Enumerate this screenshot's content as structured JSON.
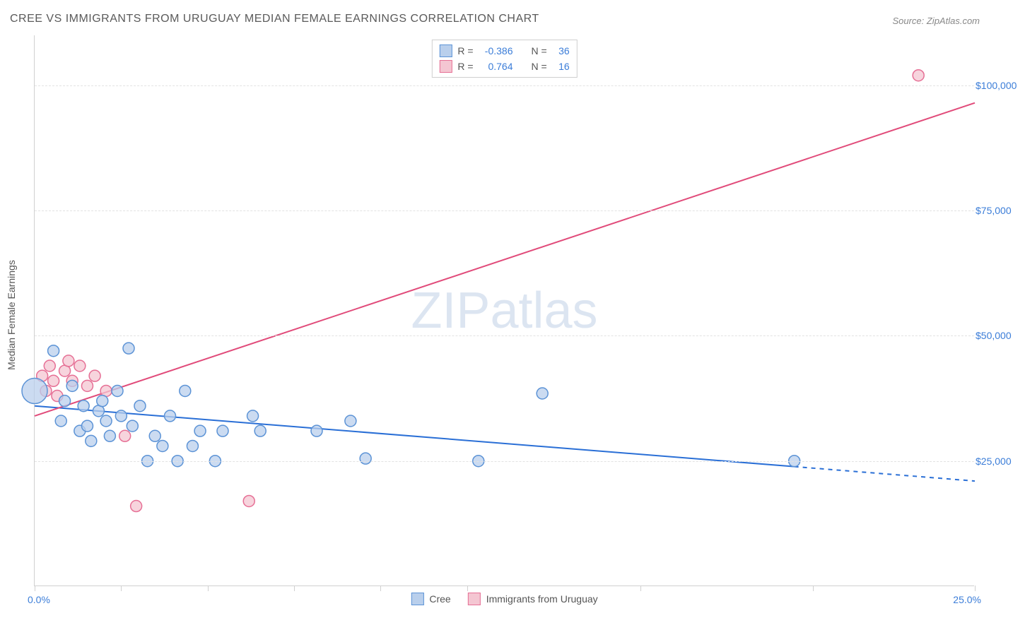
{
  "title": "CREE VS IMMIGRANTS FROM URUGUAY MEDIAN FEMALE EARNINGS CORRELATION CHART",
  "source": "Source: ZipAtlas.com",
  "watermark": "ZIPatlas",
  "chart": {
    "type": "scatter",
    "background_color": "#ffffff",
    "grid_color": "#e2e2e2",
    "border_color": "#d0d0d0",
    "y_axis_title": "Median Female Earnings",
    "xlim": [
      0,
      25
    ],
    "ylim": [
      0,
      110000
    ],
    "x_tick_positions": [
      0,
      2.3,
      4.6,
      6.9,
      9.2,
      11.5,
      16.1,
      20.7,
      25
    ],
    "x_tick_labels": {
      "left": "0.0%",
      "right": "25.0%"
    },
    "y_ticks": [
      {
        "value": 25000,
        "label": "$25,000"
      },
      {
        "value": 50000,
        "label": "$50,000"
      },
      {
        "value": 75000,
        "label": "$75,000"
      },
      {
        "value": 100000,
        "label": "$100,000"
      }
    ],
    "label_color": "#3b7dd8",
    "axis_title_color": "#555555",
    "label_fontsize": 14,
    "title_fontsize": 16,
    "title_color": "#5a5a5a",
    "marker_radius": 8,
    "marker_radius_large": 18,
    "marker_stroke_width": 1.5,
    "line_width": 2,
    "series": [
      {
        "name": "Cree",
        "fill_color": "#b9cfec",
        "stroke_color": "#5c93d6",
        "line_color": "#2a6fd6",
        "R": "-0.386",
        "N": "36",
        "regression": {
          "x1": 0,
          "y1": 36000,
          "x2": 25,
          "y2": 21000,
          "solid_until_x": 20.2
        },
        "points": [
          {
            "x": 0.0,
            "y": 39000,
            "r": 18
          },
          {
            "x": 0.5,
            "y": 47000
          },
          {
            "x": 0.7,
            "y": 33000
          },
          {
            "x": 0.8,
            "y": 37000
          },
          {
            "x": 1.0,
            "y": 40000
          },
          {
            "x": 1.2,
            "y": 31000
          },
          {
            "x": 1.3,
            "y": 36000
          },
          {
            "x": 1.4,
            "y": 32000
          },
          {
            "x": 1.5,
            "y": 29000
          },
          {
            "x": 1.7,
            "y": 35000
          },
          {
            "x": 1.8,
            "y": 37000
          },
          {
            "x": 1.9,
            "y": 33000
          },
          {
            "x": 2.0,
            "y": 30000
          },
          {
            "x": 2.2,
            "y": 39000
          },
          {
            "x": 2.3,
            "y": 34000
          },
          {
            "x": 2.5,
            "y": 47500
          },
          {
            "x": 2.6,
            "y": 32000
          },
          {
            "x": 2.8,
            "y": 36000
          },
          {
            "x": 3.0,
            "y": 25000
          },
          {
            "x": 3.2,
            "y": 30000
          },
          {
            "x": 3.4,
            "y": 28000
          },
          {
            "x": 3.6,
            "y": 34000
          },
          {
            "x": 3.8,
            "y": 25000
          },
          {
            "x": 4.0,
            "y": 39000
          },
          {
            "x": 4.2,
            "y": 28000
          },
          {
            "x": 4.4,
            "y": 31000
          },
          {
            "x": 4.8,
            "y": 25000
          },
          {
            "x": 5.0,
            "y": 31000
          },
          {
            "x": 5.8,
            "y": 34000
          },
          {
            "x": 6.0,
            "y": 31000
          },
          {
            "x": 7.5,
            "y": 31000
          },
          {
            "x": 8.4,
            "y": 33000
          },
          {
            "x": 8.8,
            "y": 25500
          },
          {
            "x": 11.8,
            "y": 25000
          },
          {
            "x": 13.5,
            "y": 38500
          },
          {
            "x": 20.2,
            "y": 25000
          }
        ]
      },
      {
        "name": "Immigrants from Uruguay",
        "fill_color": "#f4c6d2",
        "stroke_color": "#e66f95",
        "line_color": "#e14b7a",
        "R": "0.764",
        "N": "16",
        "regression": {
          "x1": 0,
          "y1": 34000,
          "x2": 25,
          "y2": 96500,
          "solid_until_x": 25
        },
        "points": [
          {
            "x": 0.2,
            "y": 42000
          },
          {
            "x": 0.3,
            "y": 39000
          },
          {
            "x": 0.4,
            "y": 44000
          },
          {
            "x": 0.5,
            "y": 41000
          },
          {
            "x": 0.6,
            "y": 38000
          },
          {
            "x": 0.8,
            "y": 43000
          },
          {
            "x": 0.9,
            "y": 45000
          },
          {
            "x": 1.0,
            "y": 41000
          },
          {
            "x": 1.2,
            "y": 44000
          },
          {
            "x": 1.4,
            "y": 40000
          },
          {
            "x": 1.6,
            "y": 42000
          },
          {
            "x": 1.9,
            "y": 39000
          },
          {
            "x": 2.4,
            "y": 30000
          },
          {
            "x": 2.7,
            "y": 16000
          },
          {
            "x": 5.7,
            "y": 17000
          },
          {
            "x": 23.5,
            "y": 102000
          }
        ]
      }
    ],
    "legend_top": [
      {
        "series_index": 0,
        "r_label": "R =",
        "n_label": "N ="
      },
      {
        "series_index": 1,
        "r_label": "R =",
        "n_label": "N ="
      }
    ],
    "legend_bottom": [
      {
        "series_index": 0
      },
      {
        "series_index": 1
      }
    ]
  }
}
